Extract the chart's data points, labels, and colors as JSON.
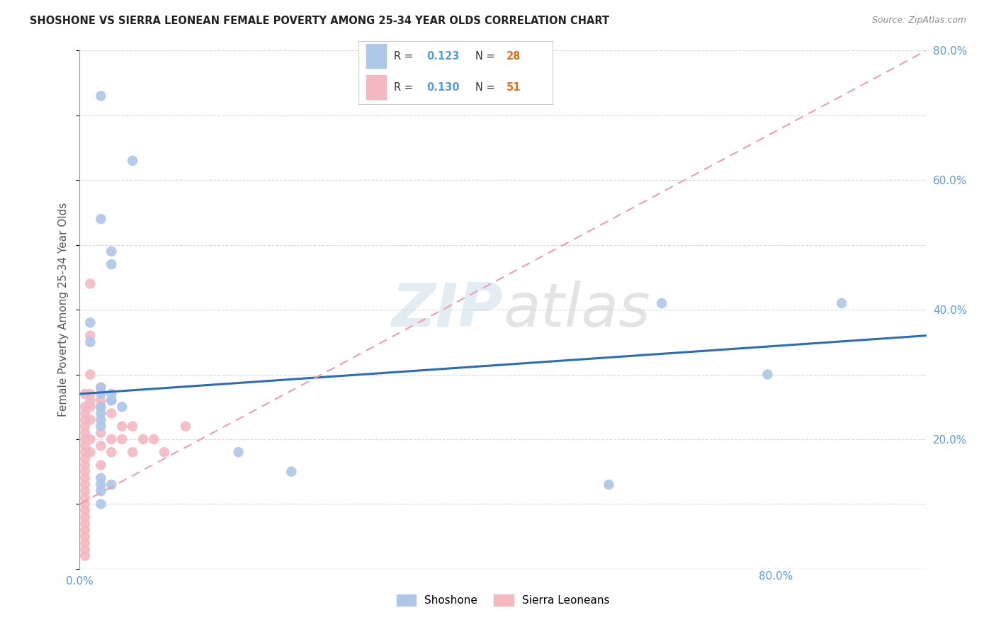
{
  "title": "SHOSHONE VS SIERRA LEONEAN FEMALE POVERTY AMONG 25-34 YEAR OLDS CORRELATION CHART",
  "source": "Source: ZipAtlas.com",
  "ylabel": "Female Poverty Among 25-34 Year Olds",
  "xlim": [
    0,
    0.8
  ],
  "ylim": [
    0,
    0.8
  ],
  "xticks": [
    0.0,
    0.1,
    0.2,
    0.3,
    0.4,
    0.5,
    0.6,
    0.7,
    0.8
  ],
  "yticks": [
    0.0,
    0.1,
    0.2,
    0.3,
    0.4,
    0.5,
    0.6,
    0.7,
    0.8
  ],
  "shoshone_x": [
    0.02,
    0.05,
    0.02,
    0.03,
    0.03,
    0.01,
    0.01,
    0.02,
    0.02,
    0.03,
    0.04,
    0.02,
    0.02,
    0.03,
    0.03,
    0.55,
    0.65,
    0.72,
    0.02,
    0.02,
    0.15,
    0.2,
    0.02,
    0.02,
    0.03,
    0.02,
    0.5,
    0.02
  ],
  "shoshone_y": [
    0.73,
    0.63,
    0.54,
    0.49,
    0.47,
    0.38,
    0.35,
    0.28,
    0.27,
    0.26,
    0.25,
    0.24,
    0.23,
    0.27,
    0.26,
    0.41,
    0.3,
    0.41,
    0.22,
    0.25,
    0.18,
    0.15,
    0.14,
    0.13,
    0.13,
    0.12,
    0.13,
    0.1
  ],
  "sierra_x": [
    0.005,
    0.005,
    0.005,
    0.005,
    0.005,
    0.005,
    0.005,
    0.005,
    0.005,
    0.005,
    0.005,
    0.005,
    0.005,
    0.005,
    0.005,
    0.005,
    0.005,
    0.005,
    0.005,
    0.005,
    0.005,
    0.005,
    0.005,
    0.005,
    0.005,
    0.01,
    0.01,
    0.01,
    0.01,
    0.01,
    0.01,
    0.01,
    0.01,
    0.01,
    0.02,
    0.02,
    0.02,
    0.02,
    0.02,
    0.02,
    0.03,
    0.03,
    0.03,
    0.04,
    0.04,
    0.05,
    0.05,
    0.06,
    0.07,
    0.08,
    0.1
  ],
  "sierra_y": [
    0.27,
    0.25,
    0.24,
    0.23,
    0.22,
    0.21,
    0.2,
    0.19,
    0.18,
    0.17,
    0.16,
    0.15,
    0.14,
    0.13,
    0.12,
    0.11,
    0.1,
    0.09,
    0.08,
    0.07,
    0.06,
    0.05,
    0.04,
    0.03,
    0.02,
    0.44,
    0.36,
    0.3,
    0.27,
    0.26,
    0.25,
    0.23,
    0.2,
    0.18,
    0.28,
    0.26,
    0.25,
    0.21,
    0.19,
    0.16,
    0.24,
    0.2,
    0.18,
    0.22,
    0.2,
    0.22,
    0.18,
    0.2,
    0.2,
    0.18,
    0.22
  ],
  "shoshone_color": "#aec6e8",
  "sierra_color": "#f4b8c1",
  "shoshone_line_color": "#2b6cb8",
  "sierra_line_color": "#e8a0b0",
  "shoshone_R": 0.123,
  "shoshone_N": 28,
  "sierra_R": 0.13,
  "sierra_N": 51,
  "background_color": "#ffffff",
  "grid_color": "#d0d0d0",
  "legend_shoshone": "Shoshone",
  "legend_sierra": "Sierra Leoneans",
  "r_color": "#5b9bd5",
  "n_color": "#e07020"
}
